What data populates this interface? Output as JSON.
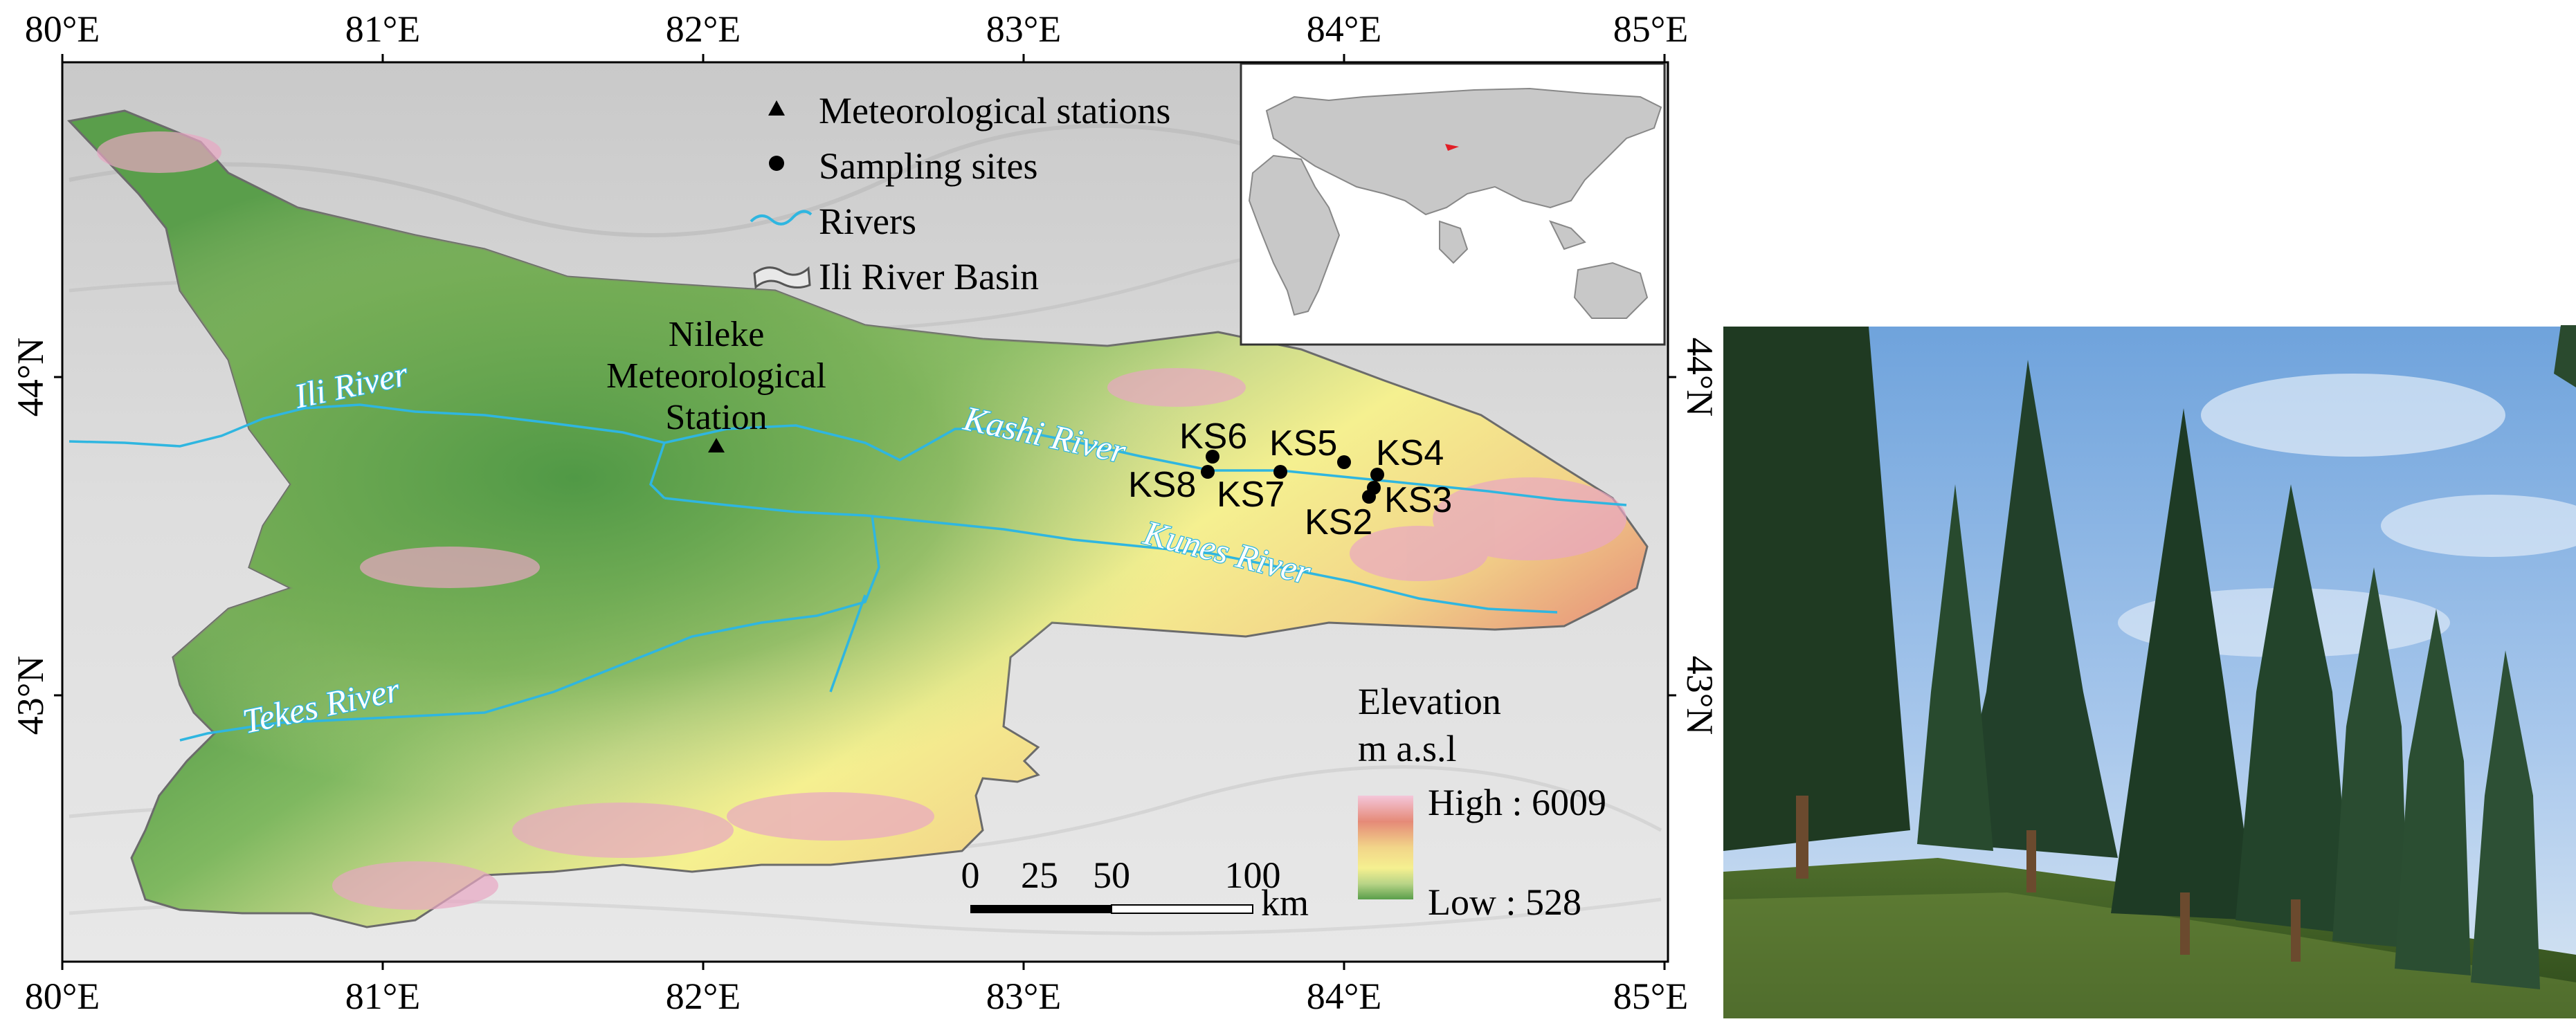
{
  "map": {
    "lon_ticks": [
      "80°E",
      "81°E",
      "82°E",
      "83°E",
      "84°E",
      "85°E"
    ],
    "lat_ticks": [
      "44°N",
      "43°N"
    ],
    "legend": {
      "meteo_stations": "Meteorological stations",
      "sampling_sites": "Sampling sites",
      "rivers": "Rivers",
      "basin": "Ili River Basin"
    },
    "rivers": {
      "ili": "Ili River",
      "kashi": "Kashi River",
      "kunes": "Kunes River",
      "tekes": "Tekes River"
    },
    "station": {
      "line1": "Nileke",
      "line2": "Meteorological",
      "line3": "Station"
    },
    "sites": [
      "KS6",
      "KS5",
      "KS4",
      "KS8",
      "KS7",
      "KS2",
      "KS3"
    ],
    "elevation": {
      "title_line1": "Elevation",
      "title_line2": "m a.s.l",
      "high": "High : 6009",
      "low": "Low : 528",
      "colors": [
        "#f4c6da",
        "#e58a78",
        "#f2d589",
        "#f5f090",
        "#b8d487",
        "#5a9e4b"
      ]
    },
    "scalebar": {
      "labels": [
        "0",
        "25",
        "50",
        "100"
      ],
      "unit": "km"
    }
  },
  "inset": {
    "marker_color": "#e21e26"
  }
}
